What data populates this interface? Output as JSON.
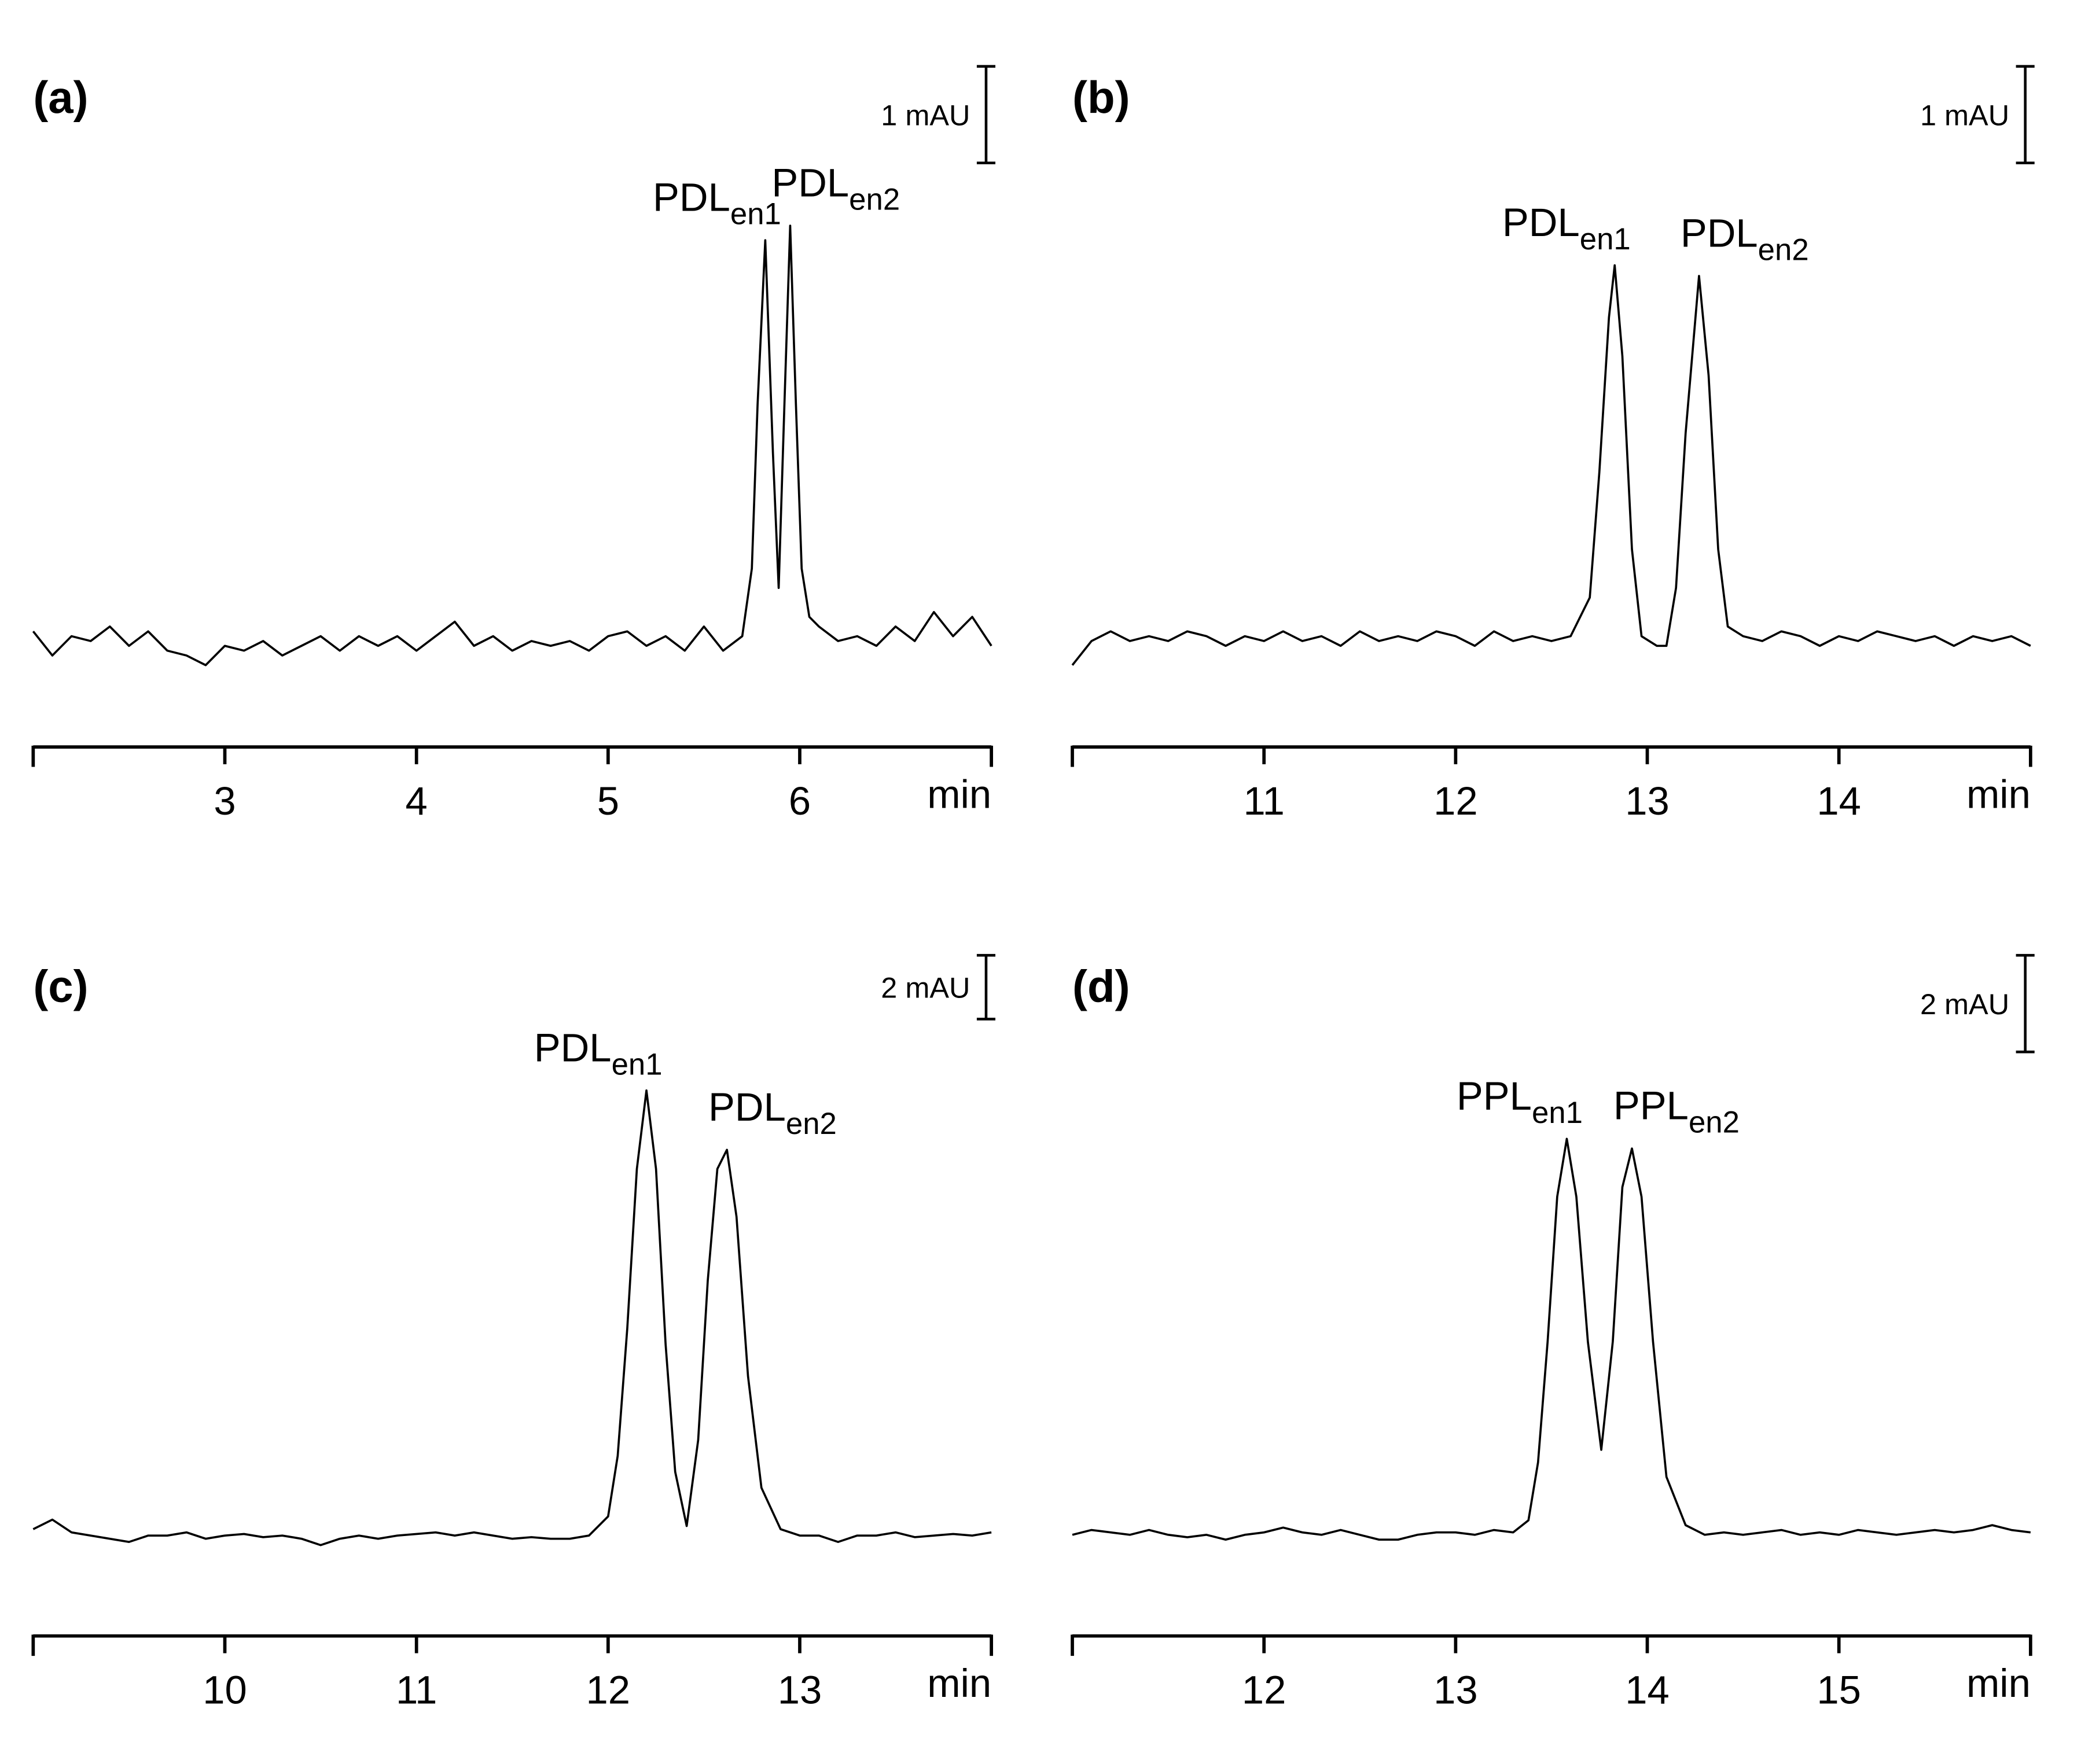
{
  "chart_data": [
    {
      "type": "line",
      "panel": "(a)",
      "xlabel": "min",
      "xlim": [
        2,
        7
      ],
      "xticks": [
        3,
        4,
        5,
        6
      ],
      "ylim": [
        -0.8,
        6.0
      ],
      "color": "#000000",
      "scale_bar": {
        "value": 1,
        "label": "1 mAU"
      },
      "annotations": [
        {
          "text": "PDL",
          "sub": "en1",
          "x": 5.82
        },
        {
          "text": "PDL",
          "sub": "en2",
          "x": 5.95
        }
      ],
      "x": [
        2.0,
        2.1,
        2.2,
        2.3,
        2.4,
        2.5,
        2.6,
        2.7,
        2.8,
        2.9,
        3.0,
        3.1,
        3.2,
        3.3,
        3.4,
        3.5,
        3.6,
        3.7,
        3.8,
        3.9,
        4.0,
        4.1,
        4.2,
        4.3,
        4.4,
        4.5,
        4.6,
        4.7,
        4.8,
        4.9,
        5.0,
        5.1,
        5.2,
        5.3,
        5.4,
        5.5,
        5.6,
        5.7,
        5.75,
        5.78,
        5.82,
        5.86,
        5.89,
        5.92,
        5.95,
        5.98,
        6.01,
        6.05,
        6.1,
        6.2,
        6.3,
        6.4,
        6.5,
        6.6,
        6.7,
        6.8,
        6.9,
        7.0
      ],
      "values": [
        0.15,
        -0.1,
        0.1,
        0.05,
        0.2,
        0.0,
        0.15,
        -0.05,
        -0.1,
        -0.2,
        0.0,
        -0.05,
        0.05,
        -0.1,
        0.0,
        0.1,
        -0.05,
        0.1,
        0.0,
        0.1,
        -0.05,
        0.1,
        0.25,
        0.0,
        0.1,
        -0.05,
        0.05,
        0.0,
        0.05,
        -0.05,
        0.1,
        0.15,
        0.0,
        0.1,
        -0.05,
        0.2,
        -0.05,
        0.1,
        0.8,
        2.5,
        4.2,
        2.0,
        0.6,
        2.5,
        4.35,
        2.5,
        0.8,
        0.3,
        0.2,
        0.05,
        0.1,
        0.0,
        0.2,
        0.05,
        0.35,
        0.1,
        0.3,
        0.0
      ]
    },
    {
      "type": "line",
      "panel": "(b)",
      "xlabel": "min",
      "xlim": [
        10,
        15
      ],
      "xticks": [
        11,
        12,
        13,
        14
      ],
      "ylim": [
        -0.8,
        6.0
      ],
      "color": "#000000",
      "scale_bar": {
        "value": 1,
        "label": "1 mAU"
      },
      "annotations": [
        {
          "text": "PDL",
          "sub": "en1",
          "x": 12.83
        },
        {
          "text": "PDL",
          "sub": "en2",
          "x": 13.27
        }
      ],
      "x": [
        10.0,
        10.1,
        10.2,
        10.3,
        10.4,
        10.5,
        10.6,
        10.7,
        10.8,
        10.9,
        11.0,
        11.1,
        11.2,
        11.3,
        11.4,
        11.5,
        11.6,
        11.7,
        11.8,
        11.9,
        12.0,
        12.1,
        12.2,
        12.3,
        12.4,
        12.5,
        12.6,
        12.7,
        12.75,
        12.8,
        12.83,
        12.87,
        12.92,
        12.97,
        13.05,
        13.1,
        13.15,
        13.2,
        13.27,
        13.32,
        13.37,
        13.42,
        13.5,
        13.6,
        13.7,
        13.8,
        13.9,
        14.0,
        14.1,
        14.2,
        14.3,
        14.4,
        14.5,
        14.6,
        14.7,
        14.8,
        14.9,
        15.0
      ],
      "values": [
        -0.2,
        0.05,
        0.15,
        0.05,
        0.1,
        0.05,
        0.15,
        0.1,
        0.0,
        0.1,
        0.05,
        0.15,
        0.05,
        0.1,
        0.0,
        0.15,
        0.05,
        0.1,
        0.05,
        0.15,
        0.1,
        0.0,
        0.15,
        0.05,
        0.1,
        0.05,
        0.1,
        0.5,
        1.8,
        3.4,
        3.94,
        3.0,
        1.0,
        0.1,
        0.0,
        0.0,
        0.6,
        2.2,
        3.83,
        2.8,
        1.0,
        0.2,
        0.1,
        0.05,
        0.15,
        0.1,
        0.0,
        0.1,
        0.05,
        0.15,
        0.1,
        0.05,
        0.1,
        0.0,
        0.1,
        0.05,
        0.1,
        0.0
      ]
    },
    {
      "type": "line",
      "panel": "(c)",
      "xlabel": "min",
      "xlim": [
        9,
        14
      ],
      "xticks": [
        10,
        11,
        12,
        13
      ],
      "ylim": [
        -2.4,
        18.2
      ],
      "color": "#000000",
      "scale_bar": {
        "value": 2,
        "label": "2 mAU"
      },
      "annotations": [
        {
          "text": "PDL",
          "sub": "en1",
          "x": 12.2
        },
        {
          "text": "PDL",
          "sub": "en2",
          "x": 12.62
        }
      ],
      "x": [
        9.0,
        9.1,
        9.2,
        9.3,
        9.4,
        9.5,
        9.6,
        9.7,
        9.8,
        9.9,
        10.0,
        10.1,
        10.2,
        10.3,
        10.4,
        10.5,
        10.6,
        10.7,
        10.8,
        10.9,
        11.0,
        11.1,
        11.2,
        11.3,
        11.4,
        11.5,
        11.6,
        11.7,
        11.8,
        11.9,
        12.0,
        12.05,
        12.1,
        12.15,
        12.2,
        12.25,
        12.3,
        12.35,
        12.41,
        12.47,
        12.52,
        12.57,
        12.62,
        12.67,
        12.73,
        12.8,
        12.9,
        13.0,
        13.1,
        13.2,
        13.3,
        13.4,
        13.5,
        13.6,
        13.7,
        13.8,
        13.9,
        14.0
      ],
      "values": [
        0.2,
        0.5,
        0.1,
        0.0,
        -0.1,
        -0.2,
        0.0,
        0.0,
        0.1,
        -0.1,
        0.0,
        0.05,
        -0.05,
        0.0,
        -0.1,
        -0.3,
        -0.1,
        0.0,
        -0.1,
        0.0,
        0.05,
        0.1,
        0.0,
        0.1,
        0.0,
        -0.1,
        -0.05,
        -0.1,
        -0.1,
        0.0,
        0.6,
        2.5,
        6.5,
        11.5,
        13.96,
        11.5,
        6.0,
        2.0,
        0.3,
        3.0,
        8.0,
        11.5,
        12.1,
        10.0,
        5.0,
        1.5,
        0.2,
        0.0,
        0.0,
        -0.2,
        0.0,
        0.0,
        0.1,
        -0.05,
        0.0,
        0.05,
        0.0,
        0.1
      ]
    },
    {
      "type": "line",
      "panel": "(d)",
      "xlabel": "min",
      "xlim": [
        11,
        16
      ],
      "xticks": [
        12,
        13,
        14,
        15
      ],
      "ylim": [
        -1.6,
        12.0
      ],
      "color": "#000000",
      "scale_bar": {
        "value": 2,
        "label": "2 mAU"
      },
      "annotations": [
        {
          "text": "PPL",
          "sub": "en1",
          "x": 13.58
        },
        {
          "text": "PPL",
          "sub": "en2",
          "x": 13.92
        }
      ],
      "x": [
        11.0,
        11.1,
        11.2,
        11.3,
        11.4,
        11.5,
        11.6,
        11.7,
        11.8,
        11.9,
        12.0,
        12.1,
        12.2,
        12.3,
        12.4,
        12.5,
        12.6,
        12.7,
        12.8,
        12.9,
        13.0,
        13.1,
        13.2,
        13.3,
        13.38,
        13.43,
        13.48,
        13.53,
        13.58,
        13.63,
        13.69,
        13.76,
        13.82,
        13.87,
        13.92,
        13.97,
        14.03,
        14.1,
        14.2,
        14.3,
        14.4,
        14.5,
        14.6,
        14.7,
        14.8,
        14.9,
        15.0,
        15.1,
        15.2,
        15.3,
        15.4,
        15.5,
        15.6,
        15.7,
        15.8,
        15.9,
        16.0
      ],
      "values": [
        0.0,
        0.1,
        0.05,
        0.0,
        0.1,
        0.0,
        -0.05,
        0.0,
        -0.1,
        0.0,
        0.05,
        0.15,
        0.05,
        0.0,
        0.1,
        0.0,
        -0.1,
        -0.1,
        0.0,
        0.05,
        0.05,
        0.0,
        0.1,
        0.05,
        0.3,
        1.5,
        4.0,
        7.0,
        8.2,
        7.0,
        4.0,
        1.76,
        4.0,
        7.2,
        8.0,
        7.0,
        4.0,
        1.2,
        0.2,
        0.0,
        0.05,
        0.0,
        0.05,
        0.1,
        0.0,
        0.05,
        0.0,
        0.1,
        0.05,
        0.0,
        0.05,
        0.1,
        0.05,
        0.1,
        0.2,
        0.1,
        0.05
      ]
    }
  ]
}
